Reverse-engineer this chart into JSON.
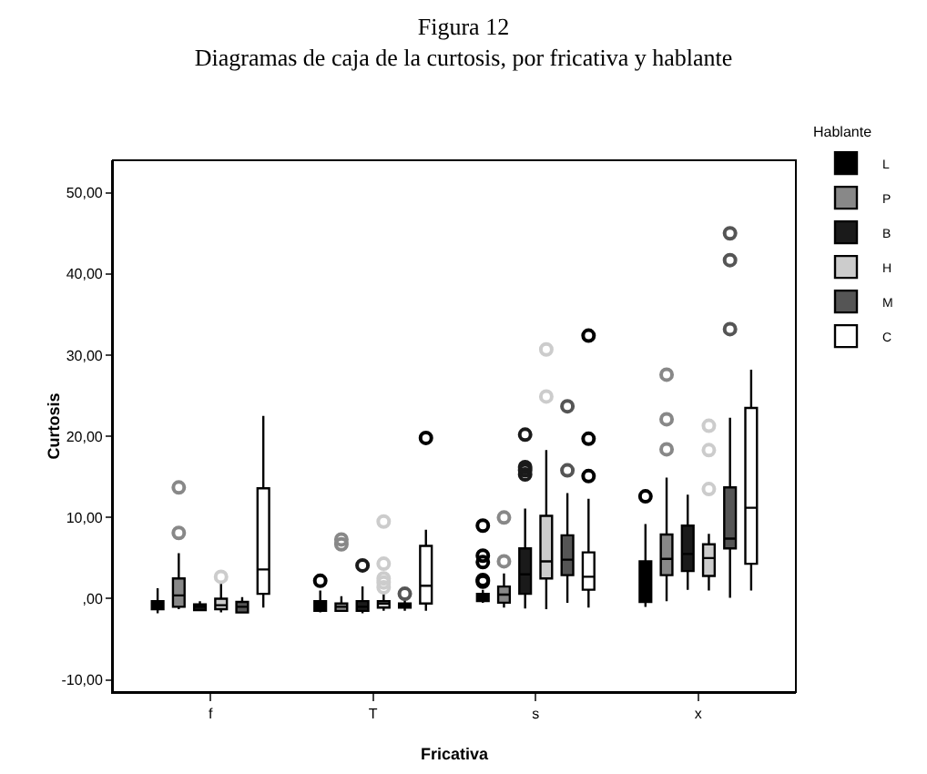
{
  "chart_data": {
    "type": "box",
    "title": "Figura 12",
    "subtitle": "Diagramas de caja de la curtosis, por fricativa y hablante",
    "xlabel": "Fricativa",
    "ylabel": "Curtosis",
    "legend_title": "Hablante",
    "legend": "top right",
    "grid": false,
    "marker": "circle",
    "categories": [
      "f",
      "T",
      "s",
      "x"
    ],
    "ylim": [
      -11.5,
      54
    ],
    "yticks": [
      {
        "value": -10,
        "label": "-10,00"
      },
      {
        "value": 0,
        "label": ",00"
      },
      {
        "value": 10,
        "label": "10,00"
      },
      {
        "value": 20,
        "label": "20,00"
      },
      {
        "value": 30,
        "label": "30,00"
      },
      {
        "value": 40,
        "label": "40,00"
      },
      {
        "value": 50,
        "label": "50,00"
      }
    ],
    "series": [
      {
        "name": "L",
        "color": "#000000",
        "boxes": [
          {
            "low": -1.8,
            "q1": -1.3,
            "median": -0.8,
            "q3": -0.3,
            "high": 1.3
          },
          {
            "low": -1.7,
            "q1": -1.5,
            "median": -0.8,
            "q3": -0.3,
            "high": 1.0,
            "outliers": [
              2.2
            ]
          },
          {
            "low": -0.5,
            "q1": -0.3,
            "median": 0,
            "q3": 0.6,
            "high": 1.1,
            "outliers": [
              2.1,
              2.3,
              4.5,
              5.3,
              9.0
            ]
          },
          {
            "low": -1.0,
            "q1": -0.4,
            "median": 2.0,
            "q3": 4.6,
            "high": 9.2,
            "outliers": [
              12.6
            ]
          }
        ]
      },
      {
        "name": "P",
        "color": "#888888",
        "boxes": [
          {
            "low": -1.3,
            "q1": -1.0,
            "median": 0.4,
            "q3": 2.5,
            "high": 5.6,
            "outliers": [
              8.1,
              13.7
            ]
          },
          {
            "low": -1.5,
            "q1": -1.5,
            "median": -1.0,
            "q3": -0.6,
            "high": 0.3,
            "outliers": [
              6.7,
              7.3
            ]
          },
          {
            "low": -1.1,
            "q1": -0.5,
            "median": 0.5,
            "q3": 1.5,
            "high": 3.1,
            "outliers": [
              4.6,
              10.0
            ]
          },
          {
            "low": -0.3,
            "q1": 2.9,
            "median": 4.9,
            "q3": 7.9,
            "high": 14.9,
            "outliers": [
              18.4,
              22.1,
              27.6
            ]
          }
        ]
      },
      {
        "name": "B",
        "color": "#1a1a1a",
        "boxes": [
          {
            "low": -1.5,
            "q1": -1.4,
            "median": -1.0,
            "q3": -0.7,
            "high": -0.3
          },
          {
            "low": -1.8,
            "q1": -1.5,
            "median": -1.0,
            "q3": -0.3,
            "high": 1.5,
            "outliers": [
              4.1
            ]
          },
          {
            "low": -1.2,
            "q1": 0.6,
            "median": 3.0,
            "q3": 6.2,
            "high": 11.1,
            "outliers": [
              15.3,
              15.8,
              16.2,
              20.2
            ]
          },
          {
            "low": 1.1,
            "q1": 3.4,
            "median": 5.5,
            "q3": 9.0,
            "high": 12.8
          }
        ]
      },
      {
        "name": "H",
        "color": "#cccccc",
        "boxes": [
          {
            "low": -1.7,
            "q1": -1.3,
            "median": -0.8,
            "q3": 0,
            "high": 2.0,
            "outliers": [
              2.7
            ]
          },
          {
            "low": -1.5,
            "q1": -1.1,
            "median": -0.6,
            "q3": -0.3,
            "high": 0.8,
            "outliers": [
              1.4,
              2.0,
              2.5,
              4.3,
              9.5
            ]
          },
          {
            "low": -1.3,
            "q1": 2.5,
            "median": 4.6,
            "q3": 10.2,
            "high": 18.3,
            "outliers": [
              24.9,
              30.7
            ]
          },
          {
            "low": 1.0,
            "q1": 2.8,
            "median": 5.0,
            "q3": 6.7,
            "high": 8.0,
            "outliers": [
              13.5,
              18.3,
              21.3
            ]
          }
        ]
      },
      {
        "name": "M",
        "color": "#555555",
        "boxes": [
          {
            "low": -1.8,
            "q1": -1.7,
            "median": -1.0,
            "q3": -0.4,
            "high": 0.2
          },
          {
            "low": -1.5,
            "q1": -1.1,
            "median": -0.8,
            "q3": -0.6,
            "high": 0,
            "outliers": [
              0.6
            ]
          },
          {
            "low": -0.5,
            "q1": 2.9,
            "median": 4.8,
            "q3": 7.8,
            "high": 13.0,
            "outliers": [
              15.8,
              23.7
            ]
          },
          {
            "low": 0.1,
            "q1": 6.2,
            "median": 7.4,
            "q3": 13.7,
            "high": 22.3,
            "outliers": [
              33.2,
              41.7,
              45.0
            ]
          }
        ]
      },
      {
        "name": "C",
        "color": "#ffffff",
        "boxes": [
          {
            "low": -1.1,
            "q1": 0.6,
            "median": 3.6,
            "q3": 13.6,
            "high": 22.5
          },
          {
            "low": -1.5,
            "q1": -0.6,
            "median": 1.6,
            "q3": 6.5,
            "high": 8.5,
            "outliers": [
              19.8
            ]
          },
          {
            "low": -1.1,
            "q1": 1.1,
            "median": 2.7,
            "q3": 5.7,
            "high": 12.3,
            "outliers": [
              15.1,
              19.7,
              32.4
            ]
          },
          {
            "low": 1.0,
            "q1": 4.3,
            "median": 11.2,
            "q3": 23.5,
            "high": 28.2
          }
        ]
      }
    ]
  }
}
